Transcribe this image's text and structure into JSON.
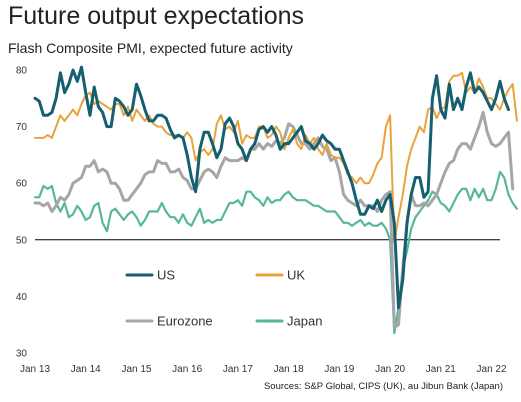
{
  "title": "Future output expectations",
  "subtitle": "Flash Composite PMI, expected future activity",
  "source": "Sources: S&P Global, CIPS (UK), au Jibun Bank (Japan)",
  "colors": {
    "US": "#165f70",
    "UK": "#e8a33d",
    "Eurozone": "#a6a6a6",
    "Japan": "#55b89a",
    "reference": "#000000"
  },
  "chart_data": {
    "type": "line",
    "title": "Future output expectations",
    "subtitle": "Flash Composite PMI, expected future activity",
    "ylim": [
      30,
      80
    ],
    "yticks": [
      30,
      40,
      50,
      60,
      70,
      80
    ],
    "x_range": [
      "2013-01",
      "2022-03"
    ],
    "xticks": [
      "Jan 13",
      "Jan 14",
      "Jan 15",
      "Jan 16",
      "Jan 17",
      "Jan 18",
      "Jan 19",
      "Jan 20",
      "Jan 21",
      "Jan 22"
    ],
    "reference_line": 50,
    "grid": false,
    "legend_placement": "inside-bottom-left",
    "series": [
      {
        "name": "US",
        "start": "2013-01",
        "values": [
          75,
          74.5,
          72,
          72,
          72.5,
          75,
          79.5,
          76,
          77.5,
          80,
          78,
          80.5,
          76,
          72,
          77,
          73.5,
          72.5,
          70,
          70,
          75,
          74.5,
          73.5,
          72,
          73,
          77.5,
          75.5,
          73,
          71,
          71,
          72,
          72,
          71.5,
          69.5,
          68,
          68.5,
          68,
          65,
          61,
          58.5,
          66,
          69,
          69,
          67,
          64.5,
          66,
          70.5,
          71.5,
          70,
          67,
          66,
          64,
          66,
          67,
          69.5,
          70,
          69,
          70,
          68.5,
          66,
          67,
          67,
          68,
          69,
          70,
          67.5,
          67,
          66,
          67,
          68.5,
          67.5,
          67,
          66,
          66,
          64,
          62,
          60,
          57,
          54.5,
          54.5,
          56,
          55.5,
          57,
          55,
          57,
          58,
          53,
          38,
          43,
          53,
          58,
          61,
          61,
          57.5,
          58.5,
          75,
          79,
          73,
          71.5,
          77.5,
          73,
          75,
          73,
          77,
          79.5,
          76,
          77,
          76,
          74.5,
          73,
          75,
          78,
          75,
          73
        ],
        "width": 3
      },
      {
        "name": "UK",
        "start": "2013-01",
        "values": [
          68,
          68,
          68,
          68.5,
          68,
          70,
          72,
          71,
          72,
          73,
          72,
          74,
          75.5,
          76,
          74,
          74.5,
          74,
          73.5,
          73,
          74,
          74,
          72,
          73.5,
          71,
          73,
          72,
          71,
          72,
          70.5,
          70,
          70,
          69,
          68.5,
          68.5,
          68.5,
          68,
          69,
          68,
          64,
          65.5,
          66,
          65,
          66,
          70.5,
          72,
          69.5,
          70,
          69,
          71,
          67,
          68.5,
          68,
          68,
          70,
          70,
          68,
          68.5,
          70,
          69,
          66,
          68,
          69.5,
          67,
          66,
          68.5,
          67,
          68,
          66,
          65,
          67,
          65,
          64.5,
          64.5,
          63.5,
          61.5,
          61,
          60,
          61,
          60,
          60,
          61.5,
          63.5,
          64.5,
          70,
          72,
          49.5,
          54,
          58,
          63,
          66,
          68,
          70,
          69,
          73,
          73.5,
          71.5,
          73,
          73.5,
          78,
          79,
          79,
          79.5,
          76,
          77,
          76,
          78.5,
          77,
          75,
          75,
          74,
          73,
          75,
          76.5,
          77.5,
          71
        ],
        "width": 2
      },
      {
        "name": "Eurozone",
        "start": "2013-01",
        "values": [
          56.5,
          56.5,
          56,
          56.5,
          55,
          56,
          57.5,
          57,
          58,
          60,
          60.5,
          61,
          63,
          63,
          64,
          62,
          62.5,
          62,
          60,
          60,
          59,
          57,
          57,
          58,
          59,
          60,
          61.5,
          62,
          62,
          64,
          63.5,
          63.5,
          62,
          62,
          62.5,
          61,
          60.5,
          59,
          59,
          60.5,
          62,
          62.5,
          62,
          61,
          63,
          64.5,
          64,
          64,
          64,
          64.5,
          64,
          66,
          66,
          67,
          66,
          67,
          66.5,
          67.5,
          67,
          68,
          70.5,
          70,
          68.5,
          67,
          67,
          66,
          67,
          68,
          66.5,
          66,
          64,
          64.5,
          62,
          58,
          57,
          56.5,
          56,
          57,
          56,
          56,
          56,
          55,
          57,
          58,
          58.5,
          34.5,
          35,
          45,
          53,
          58,
          56,
          56,
          56.5,
          56,
          57,
          58,
          60,
          62,
          63.5,
          64,
          66,
          67,
          67,
          66,
          68,
          70,
          72.5,
          69,
          67,
          66.5,
          67,
          68,
          69,
          59
        ],
        "width": 3
      },
      {
        "name": "Japan",
        "start": "2013-01",
        "values": [
          57.5,
          57.5,
          59.5,
          59,
          59.5,
          56.5,
          55,
          56.5,
          54,
          54.5,
          56,
          55,
          53.5,
          54,
          56,
          56.5,
          53,
          51.5,
          55,
          55.5,
          54.5,
          53.5,
          54.5,
          55,
          54,
          52.5,
          53.5,
          55,
          55,
          55,
          56.5,
          55,
          54,
          54,
          53,
          54.5,
          53,
          52.5,
          54,
          55.5,
          53,
          53.5,
          53,
          53.5,
          53.5,
          55,
          56.5,
          56.5,
          57,
          56,
          58.5,
          58.5,
          57.5,
          57,
          56,
          57.5,
          56.5,
          57,
          57,
          58,
          58.5,
          57.5,
          57,
          57,
          57,
          56.5,
          56,
          56,
          55.5,
          55,
          55,
          55,
          54,
          53,
          53,
          52.5,
          53,
          53.5,
          52.5,
          53,
          52.5,
          52.5,
          53,
          52,
          50,
          33.5,
          38,
          45,
          48,
          52,
          54,
          55,
          56,
          57,
          58.5,
          58,
          56.5,
          56,
          55,
          56.5,
          58,
          59,
          59,
          57,
          59,
          57.5,
          59,
          57,
          57,
          59,
          62,
          61,
          58,
          56.5,
          55.5
        ],
        "width": 2.2
      }
    ]
  }
}
